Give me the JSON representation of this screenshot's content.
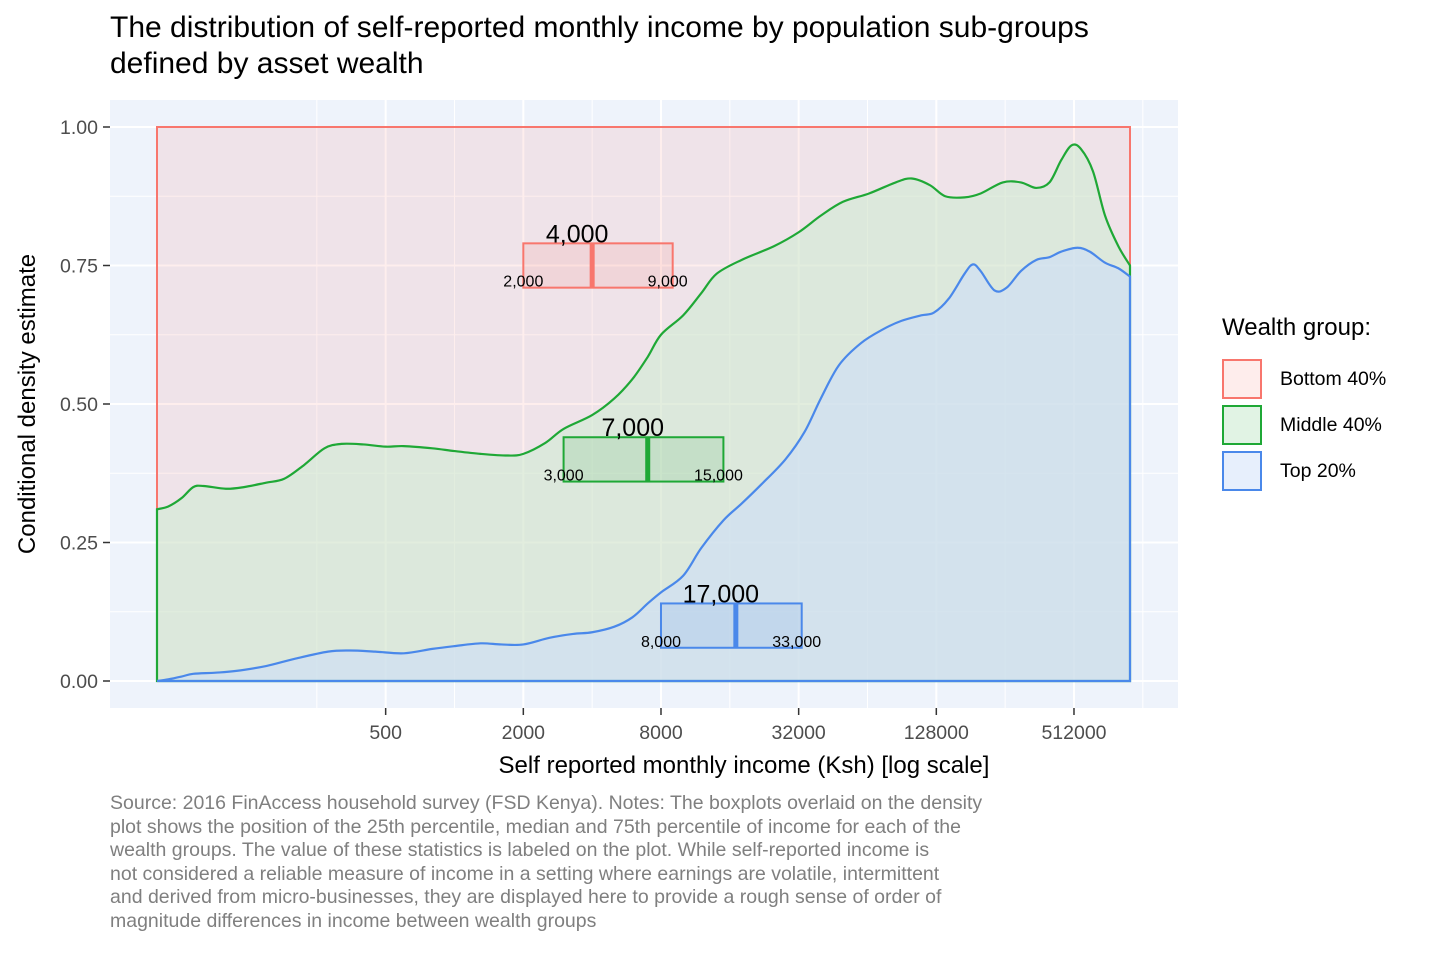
{
  "title_lines": [
    "The distribution of self-reported monthly income by population sub-groups",
    "defined by asset wealth"
  ],
  "caption_lines": [
    "Source: 2016 FinAccess household survey (FSD Kenya). Notes: The boxplots overlaid on the density",
    "plot shows the position of the 25th percentile, median and 75th percentile of income for each of the",
    "wealth groups. The value of these statistics is labeled on the plot. While self-reported income is",
    "not considered a reliable measure of income in a setting where earnings are volatile, intermittent",
    "and derived from micro-businesses, they are displayed here to provide a rough sense of order of",
    "magnitude differences in income between wealth groups"
  ],
  "colors": {
    "panel_background": "#eef3fb",
    "grid": "#ffffff",
    "Bottom 40%": "#f8766d",
    "Middle 40%": "#1fa836",
    "Top 20%": "#4a88ea"
  },
  "legend": {
    "title": "Wealth group:",
    "items": [
      "Bottom 40%",
      "Middle 40%",
      "Top 20%"
    ]
  },
  "chart_data": {
    "type": "area",
    "subtype": "conditional density (stacked, fill) with boxplot overlays",
    "xlabel": "Self reported monthly income (Ksh) [log scale]",
    "ylabel": "Conditional density estimate",
    "x_scale": "log",
    "x_ticks": [
      500,
      2000,
      8000,
      32000,
      128000,
      512000
    ],
    "x_tick_labels": [
      "500",
      "2000",
      "8000",
      "32000",
      "128000",
      "512000"
    ],
    "xlim": [
      40,
      1100000
    ],
    "x_range_data": [
      50,
      900000
    ],
    "y_ticks": [
      0,
      0.25,
      0.5,
      0.75,
      1.0
    ],
    "y_tick_labels": [
      "0.00",
      "0.25",
      "0.50",
      "0.75",
      "1.00"
    ],
    "ylim": [
      0,
      1
    ],
    "grid": true,
    "legend_position": "right",
    "cumulative_boundaries": [
      {
        "name": "Middle 40%",
        "description": "upper edge of Middle 40% band (share of Top 20% + Middle 40%)",
        "points": [
          [
            50,
            0.31
          ],
          [
            56,
            0.315
          ],
          [
            64,
            0.33
          ],
          [
            72,
            0.35
          ],
          [
            80,
            0.352
          ],
          [
            100,
            0.347
          ],
          [
            120,
            0.35
          ],
          [
            150,
            0.358
          ],
          [
            180,
            0.365
          ],
          [
            220,
            0.39
          ],
          [
            270,
            0.42
          ],
          [
            320,
            0.428
          ],
          [
            400,
            0.427
          ],
          [
            500,
            0.423
          ],
          [
            600,
            0.424
          ],
          [
            800,
            0.42
          ],
          [
            1000,
            0.415
          ],
          [
            1300,
            0.41
          ],
          [
            1700,
            0.407
          ],
          [
            2000,
            0.41
          ],
          [
            2500,
            0.43
          ],
          [
            3000,
            0.455
          ],
          [
            4000,
            0.48
          ],
          [
            5000,
            0.51
          ],
          [
            6000,
            0.545
          ],
          [
            7000,
            0.585
          ],
          [
            8000,
            0.625
          ],
          [
            10000,
            0.66
          ],
          [
            12000,
            0.7
          ],
          [
            14000,
            0.735
          ],
          [
            18000,
            0.76
          ],
          [
            25000,
            0.785
          ],
          [
            32000,
            0.81
          ],
          [
            40000,
            0.84
          ],
          [
            50000,
            0.865
          ],
          [
            65000,
            0.88
          ],
          [
            85000,
            0.9
          ],
          [
            100000,
            0.907
          ],
          [
            120000,
            0.895
          ],
          [
            140000,
            0.875
          ],
          [
            170000,
            0.873
          ],
          [
            200000,
            0.88
          ],
          [
            250000,
            0.9
          ],
          [
            300000,
            0.9
          ],
          [
            350000,
            0.89
          ],
          [
            400000,
            0.9
          ],
          [
            450000,
            0.94
          ],
          [
            500000,
            0.967
          ],
          [
            550000,
            0.96
          ],
          [
            620000,
            0.92
          ],
          [
            700000,
            0.84
          ],
          [
            800000,
            0.785
          ],
          [
            900000,
            0.75
          ]
        ]
      },
      {
        "name": "Top 20%",
        "description": "upper edge of Top 20% band (share of Top 20%)",
        "points": [
          [
            50,
            0.0
          ],
          [
            56,
            0.003
          ],
          [
            64,
            0.008
          ],
          [
            72,
            0.013
          ],
          [
            90,
            0.015
          ],
          [
            110,
            0.018
          ],
          [
            150,
            0.027
          ],
          [
            200,
            0.04
          ],
          [
            280,
            0.053
          ],
          [
            350,
            0.055
          ],
          [
            450,
            0.053
          ],
          [
            600,
            0.05
          ],
          [
            800,
            0.058
          ],
          [
            1000,
            0.063
          ],
          [
            1300,
            0.068
          ],
          [
            1600,
            0.066
          ],
          [
            2000,
            0.066
          ],
          [
            2600,
            0.078
          ],
          [
            3300,
            0.085
          ],
          [
            4000,
            0.088
          ],
          [
            5000,
            0.098
          ],
          [
            6000,
            0.115
          ],
          [
            7000,
            0.14
          ],
          [
            8000,
            0.16
          ],
          [
            10000,
            0.19
          ],
          [
            12000,
            0.24
          ],
          [
            15000,
            0.29
          ],
          [
            18000,
            0.32
          ],
          [
            22000,
            0.355
          ],
          [
            28000,
            0.4
          ],
          [
            34000,
            0.45
          ],
          [
            40000,
            0.51
          ],
          [
            48000,
            0.57
          ],
          [
            60000,
            0.61
          ],
          [
            75000,
            0.635
          ],
          [
            90000,
            0.65
          ],
          [
            110000,
            0.66
          ],
          [
            125000,
            0.665
          ],
          [
            145000,
            0.69
          ],
          [
            170000,
            0.735
          ],
          [
            185000,
            0.752
          ],
          [
            200000,
            0.74
          ],
          [
            230000,
            0.705
          ],
          [
            260000,
            0.71
          ],
          [
            300000,
            0.74
          ],
          [
            350000,
            0.76
          ],
          [
            400000,
            0.765
          ],
          [
            450000,
            0.775
          ],
          [
            530000,
            0.782
          ],
          [
            600000,
            0.775
          ],
          [
            700000,
            0.755
          ],
          [
            800000,
            0.745
          ],
          [
            900000,
            0.73
          ]
        ]
      }
    ],
    "boxplots": [
      {
        "group": "Bottom 40%",
        "q1": 2000,
        "median": 4000,
        "q3": 9000,
        "y_bottom": 0.71,
        "y_top": 0.79,
        "labels": {
          "q1": "2,000",
          "median": "4,000",
          "q3": "9,000"
        }
      },
      {
        "group": "Middle 40%",
        "q1": 3000,
        "median": 7000,
        "q3": 15000,
        "y_bottom": 0.36,
        "y_top": 0.44,
        "labels": {
          "q1": "3,000",
          "median": "7,000",
          "q3": "15,000"
        }
      },
      {
        "group": "Top 20%",
        "q1": 8000,
        "median": 17000,
        "q3": 33000,
        "y_bottom": 0.06,
        "y_top": 0.14,
        "labels": {
          "q1": "8,000",
          "median": "17,000",
          "q3": "33,000"
        }
      }
    ]
  }
}
